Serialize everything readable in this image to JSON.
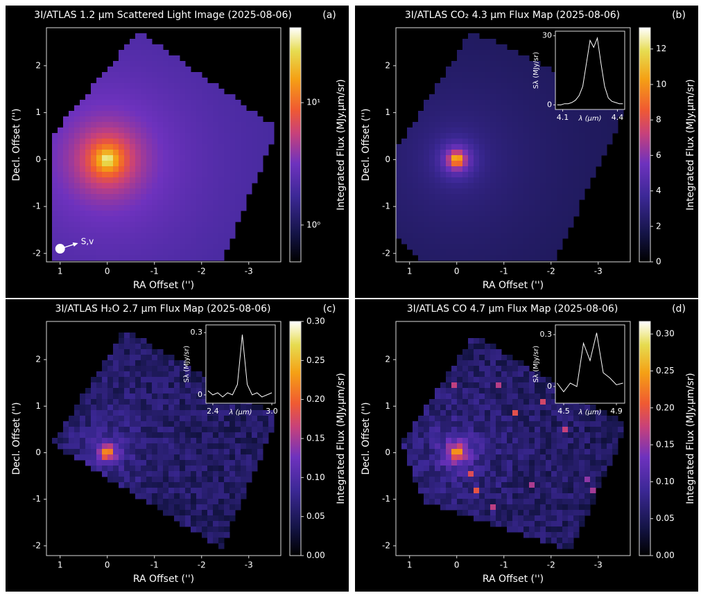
{
  "chart_data": [
    {
      "type": "image",
      "title": "3I/ATLAS 1.2 μm Scattered Light Image (2025-08-06)",
      "panel_label": "(a)",
      "xlabel": "RA Offset ('')",
      "ylabel": "Decl. Offset ('')",
      "xlim": [
        1.29,
        -3.68
      ],
      "ylim": [
        -2.18,
        2.81
      ],
      "xticks": [
        1,
        0,
        -1,
        -2,
        -3
      ],
      "yticks": [
        -2,
        -1,
        0,
        1,
        2
      ],
      "annotation": "S,v",
      "colorbar": {
        "label": "Integrated Flux (MJy.μm/sr)",
        "scale": "log",
        "lim": [
          0.5,
          41
        ],
        "ticks": [
          {
            "value": 1,
            "label": "10⁰"
          },
          {
            "value": 10,
            "label": "10¹"
          }
        ]
      }
    },
    {
      "type": "image",
      "title": "3I/ATLAS CO₂ 4.3 μm Flux Map (2025-08-06)",
      "panel_label": "(b)",
      "xlabel": "RA Offset ('')",
      "ylabel": "Decl. Offset ('')",
      "xlim": [
        1.29,
        -3.68
      ],
      "ylim": [
        -2.18,
        2.81
      ],
      "xticks": [
        1,
        0,
        -1,
        -2,
        -3
      ],
      "yticks": [
        -2,
        -1,
        0,
        1,
        2
      ],
      "colorbar": {
        "label": "Integrated Flux (MJy.μm/sr)",
        "scale": "linear",
        "lim": [
          0,
          13.2
        ],
        "ticks": [
          0,
          2,
          4,
          6,
          8,
          10,
          12
        ]
      },
      "inset": {
        "xlabel": "λ (μm)",
        "ylabel": "Sλ (MJy/sr)",
        "color": "#ffffff",
        "xlim": [
          4.06,
          4.44
        ],
        "ylim": [
          -2,
          32
        ],
        "xticks": [
          4.1,
          4.4
        ],
        "yticks": [
          0,
          30
        ],
        "x": [
          4.07,
          4.09,
          4.11,
          4.13,
          4.15,
          4.17,
          4.19,
          4.21,
          4.23,
          4.25,
          4.27,
          4.29,
          4.31,
          4.33,
          4.35,
          4.37,
          4.39,
          4.41,
          4.43
        ],
        "values": [
          0,
          0,
          0.5,
          0.5,
          1,
          2,
          4,
          8,
          18,
          28,
          25,
          29,
          18,
          8,
          3,
          1.5,
          1,
          0.5,
          0.5
        ]
      }
    },
    {
      "type": "image",
      "title": "3I/ATLAS H₂O 2.7 μm Flux Map (2025-08-06)",
      "panel_label": "(c)",
      "xlabel": "RA Offset ('')",
      "ylabel": "Decl. Offset ('')",
      "xlim": [
        1.29,
        -3.68
      ],
      "ylim": [
        -2.21,
        2.82
      ],
      "xticks": [
        1,
        0,
        -1,
        -2,
        -3
      ],
      "yticks": [
        -2,
        -1,
        0,
        1,
        2
      ],
      "colorbar": {
        "label": "Integrated Flux (MJy.μm/sr)",
        "scale": "linear",
        "lim": [
          0,
          0.3
        ],
        "ticks": [
          {
            "value": 0,
            "label": "0.00"
          },
          {
            "value": 0.05,
            "label": "0.05"
          },
          {
            "value": 0.1,
            "label": "0.10"
          },
          {
            "value": 0.15,
            "label": "0.15"
          },
          {
            "value": 0.2,
            "label": "0.20"
          },
          {
            "value": 0.25,
            "label": "0.25"
          },
          {
            "value": 0.3,
            "label": "0.30"
          }
        ]
      },
      "inset": {
        "xlabel": "λ (μm)",
        "ylabel": "Sλ (MJy/sr)",
        "color": "#ffffff",
        "xlim": [
          2.33,
          3.035
        ],
        "ylim": [
          -0.04,
          0.337
        ],
        "xticks": [
          2.4,
          {
            "value": 3.0,
            "label": "3.0"
          }
        ],
        "yticks": [
          0,
          0.3
        ],
        "x": [
          2.35,
          2.4,
          2.45,
          2.5,
          2.55,
          2.6,
          2.65,
          2.7,
          2.75,
          2.8,
          2.85,
          2.9,
          2.95,
          3.0
        ],
        "values": [
          0.02,
          0.0,
          0.01,
          -0.01,
          0.01,
          0.0,
          0.05,
          0.29,
          0.05,
          0.0,
          0.01,
          -0.01,
          0.0,
          0.01
        ]
      }
    },
    {
      "type": "image",
      "title": "3I/ATLAS CO 4.7 μm Flux Map (2025-08-06)",
      "panel_label": "(d)",
      "xlabel": "RA Offset ('')",
      "ylabel": "Decl. Offset ('')",
      "xlim": [
        1.29,
        -3.68
      ],
      "ylim": [
        -2.21,
        2.82
      ],
      "xticks": [
        1,
        0,
        -1,
        -2,
        -3
      ],
      "yticks": [
        -2,
        -1,
        0,
        1,
        2
      ],
      "colorbar": {
        "label": "Integrated Flux (MJy.μm/sr)",
        "scale": "linear",
        "lim": [
          0,
          0.317
        ],
        "ticks": [
          {
            "value": 0,
            "label": "0.00"
          },
          {
            "value": 0.05,
            "label": "0.05"
          },
          {
            "value": 0.1,
            "label": "0.10"
          },
          {
            "value": 0.15,
            "label": "0.15"
          },
          {
            "value": 0.2,
            "label": "0.20"
          },
          {
            "value": 0.25,
            "label": "0.25"
          },
          {
            "value": 0.3,
            "label": "0.30"
          }
        ]
      },
      "inset": {
        "xlabel": "λ (μm)",
        "ylabel": "Sλ (MJy/sr)",
        "color": "#ffffff",
        "xlim": [
          4.437,
          4.963
        ],
        "ylim": [
          -0.096,
          0.356
        ],
        "xticks": [
          4.5,
          4.9
        ],
        "yticks": [
          0,
          0.3
        ],
        "x": [
          4.45,
          4.5,
          4.55,
          4.6,
          4.65,
          4.7,
          4.75,
          4.8,
          4.85,
          4.9,
          4.95
        ],
        "values": [
          0.02,
          -0.03,
          0.02,
          0.0,
          0.25,
          0.15,
          0.31,
          0.08,
          0.05,
          0.01,
          0.02
        ]
      }
    }
  ]
}
